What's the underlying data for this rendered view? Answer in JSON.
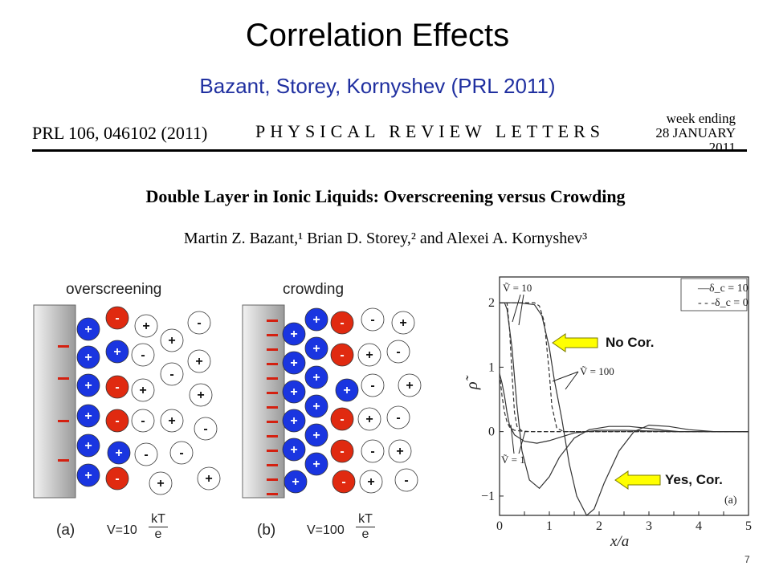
{
  "slide": {
    "title": "Correlation Effects",
    "subtitle": "Bazant, Storey, Kornyshev (PRL 2011)",
    "page_number": "7"
  },
  "paper": {
    "reference": "PRL 106, 046102 (2011)",
    "journal": "PHYSICAL REVIEW LETTERS",
    "week_ending_label": "week ending",
    "week_ending_date": "28 JANUARY 2011",
    "title": "Double Layer in Ionic Liquids: Overscreening versus Crowding",
    "authors": "Martin Z. Bazant,¹ Brian D. Storey,² and Alexei A. Kornyshev³"
  },
  "schematic": {
    "panel_a": {
      "label": "overscreening",
      "caption": "(a)",
      "voltage": "V=10",
      "kt_num": "kT",
      "kt_den": "e"
    },
    "panel_b": {
      "label": "crowding",
      "caption": "(b)",
      "voltage": "V=100",
      "kt_num": "kT",
      "kt_den": "e"
    },
    "colors": {
      "cation": "#1a35e0",
      "anion": "#e02a10",
      "electrode_charge": "#d42010"
    }
  },
  "chart_data": {
    "type": "line",
    "panel_label": "(a)",
    "xlabel": "x/a",
    "ylabel": "ρ̃",
    "xlim": [
      0,
      5
    ],
    "ylim": [
      -1.3,
      2.4
    ],
    "x_ticks": [
      "0",
      "0.5",
      "1",
      "1.5",
      "2",
      "2.5",
      "3",
      "3.5",
      "4",
      "4.5",
      "5"
    ],
    "y_ticks": [
      "2",
      "1",
      "0",
      "−1"
    ],
    "legend": [
      {
        "style": "solid",
        "label": "—δ_c = 10"
      },
      {
        "style": "dashed",
        "label": "- - -δ_c = 0"
      }
    ],
    "annotations": [
      "Ṽ = 10",
      "Ṽ = 100",
      "Ṽ = 1"
    ],
    "series": [
      {
        "name": "—δ_c = 10",
        "style": "solid",
        "x": [
          0,
          0.05,
          0.1,
          0.15,
          0.2,
          0.3,
          0.5,
          0.75,
          1.0,
          1.25,
          1.5,
          2.0,
          2.5,
          3.0,
          3.5,
          4.0,
          5.0
        ],
        "y": [
          0.9,
          0.75,
          0.55,
          0.3,
          0.1,
          -0.05,
          -0.15,
          -0.18,
          -0.14,
          -0.08,
          -0.02,
          0.02,
          0.02,
          0.01,
          0,
          0,
          0
        ]
      },
      {
        "name": "—δ_c = 10",
        "style": "solid",
        "x": [
          0,
          0.1,
          0.15,
          0.25,
          0.35,
          0.45,
          0.6,
          0.8,
          1.0,
          1.2,
          1.5,
          1.8,
          2.2,
          2.6,
          3.0,
          3.3,
          3.6,
          4.0,
          4.5,
          5.0
        ],
        "y": [
          2.0,
          2.0,
          1.9,
          1.3,
          0.4,
          -0.3,
          -0.75,
          -0.88,
          -0.7,
          -0.4,
          -0.1,
          0.03,
          0.08,
          0.08,
          0.05,
          0.02,
          0.0,
          0.0,
          0.0,
          0.0
        ]
      },
      {
        "name": "—δ_c = 10",
        "style": "solid",
        "x": [
          0,
          0.4,
          0.7,
          0.85,
          1.0,
          1.1,
          1.25,
          1.4,
          1.55,
          1.75,
          1.9,
          2.1,
          2.4,
          2.7,
          3.0,
          3.4,
          3.8,
          4.3,
          5.0
        ],
        "y": [
          2.0,
          2.0,
          1.97,
          1.8,
          1.3,
          0.8,
          0.2,
          -0.5,
          -1.0,
          -1.3,
          -1.2,
          -0.8,
          -0.3,
          0.0,
          0.1,
          0.08,
          0.03,
          0.0,
          0.0
        ]
      },
      {
        "name": "- - -δ_c = 0",
        "style": "dashed",
        "x": [
          0,
          0.05,
          0.1,
          0.15,
          0.2,
          0.3,
          0.5,
          1.0,
          5.0
        ],
        "y": [
          0.9,
          0.55,
          0.3,
          0.15,
          0.07,
          0.02,
          0.0,
          0.0,
          0.0
        ]
      },
      {
        "name": "- - -δ_c = 0",
        "style": "dashed",
        "x": [
          0,
          0.15,
          0.2,
          0.25,
          0.3,
          0.35,
          0.45,
          0.6,
          5.0
        ],
        "y": [
          2.0,
          2.0,
          1.6,
          0.9,
          0.3,
          0.08,
          0.01,
          0.0,
          0.0
        ]
      },
      {
        "name": "- - -δ_c = 0",
        "style": "dashed",
        "x": [
          0,
          0.7,
          0.8,
          0.9,
          1.0,
          1.05,
          1.15,
          1.3,
          5.0
        ],
        "y": [
          2.0,
          2.0,
          1.95,
          1.7,
          0.9,
          0.4,
          0.05,
          0.0,
          0.0
        ]
      }
    ]
  },
  "callouts": {
    "no_cor": "No Cor.",
    "yes_cor": "Yes, Cor.",
    "arrow_color": "#ffff00"
  }
}
